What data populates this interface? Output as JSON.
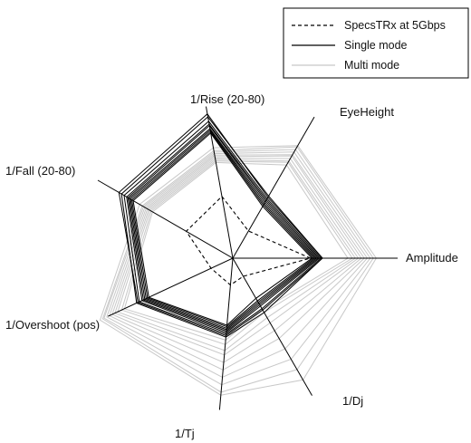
{
  "chart_data": {
    "type": "radar",
    "axes": [
      "Amplitude",
      "EyeHeight",
      "1/Rise (20-80)",
      "1/Fall (20-80)",
      "1/Overshoot (pos)",
      "1/Tj",
      "1/Dj"
    ],
    "axis_angles_deg": [
      0,
      60,
      100,
      150,
      205,
      265,
      300
    ],
    "value_range": [
      0,
      1
    ],
    "grid": false,
    "legend_position": "top-right",
    "legend": [
      {
        "label": "SpecsTRx at 5Gbps",
        "style": "dashed",
        "color": "#000000"
      },
      {
        "label": "Single mode",
        "style": "solid",
        "color": "#000000"
      },
      {
        "label": "Multi mode",
        "style": "solid",
        "color": "#c8c8c8"
      }
    ],
    "series": [
      {
        "group": "SpecsTRx at 5Gbps",
        "values": [
          0.52,
          0.21,
          0.42,
          0.36,
          0.16,
          0.18,
          0.14
        ]
      },
      {
        "group": "Single mode",
        "values": [
          0.6,
          0.48,
          0.96,
          0.86,
          0.71,
          0.53,
          0.42
        ]
      },
      {
        "group": "Single mode",
        "values": [
          0.59,
          0.46,
          0.93,
          0.84,
          0.69,
          0.51,
          0.39
        ]
      },
      {
        "group": "Single mode",
        "values": [
          0.58,
          0.45,
          0.91,
          0.82,
          0.67,
          0.5,
          0.37
        ]
      },
      {
        "group": "Single mode",
        "values": [
          0.57,
          0.44,
          0.9,
          0.81,
          0.66,
          0.49,
          0.36
        ]
      },
      {
        "group": "Single mode",
        "values": [
          0.56,
          0.43,
          0.88,
          0.8,
          0.65,
          0.48,
          0.35
        ]
      },
      {
        "group": "Single mode",
        "values": [
          0.55,
          0.42,
          0.87,
          0.79,
          0.64,
          0.47,
          0.34
        ]
      },
      {
        "group": "Single mode",
        "values": [
          0.54,
          0.41,
          0.86,
          0.78,
          0.63,
          0.46,
          0.33
        ]
      },
      {
        "group": "Single mode",
        "values": [
          0.53,
          0.4,
          0.85,
          0.77,
          0.62,
          0.45,
          0.31
        ]
      },
      {
        "group": "Single mode",
        "values": [
          0.6,
          0.47,
          0.98,
          0.88,
          0.7,
          0.52,
          0.4
        ]
      },
      {
        "group": "Multi mode",
        "values": [
          0.96,
          0.87,
          0.75,
          0.72,
          0.98,
          0.92,
          0.94
        ]
      },
      {
        "group": "Multi mode",
        "values": [
          0.94,
          0.86,
          0.73,
          0.7,
          0.96,
          0.9,
          0.86
        ]
      },
      {
        "group": "Multi mode",
        "values": [
          0.92,
          0.84,
          0.72,
          0.69,
          0.95,
          0.85,
          0.78
        ]
      },
      {
        "group": "Multi mode",
        "values": [
          0.9,
          0.82,
          0.71,
          0.68,
          0.93,
          0.8,
          0.7
        ]
      },
      {
        "group": "Multi mode",
        "values": [
          0.88,
          0.8,
          0.7,
          0.67,
          0.91,
          0.75,
          0.62
        ]
      },
      {
        "group": "Multi mode",
        "values": [
          0.86,
          0.79,
          0.69,
          0.66,
          0.89,
          0.7,
          0.56
        ]
      },
      {
        "group": "Multi mode",
        "values": [
          0.84,
          0.77,
          0.68,
          0.65,
          0.87,
          0.65,
          0.5
        ]
      },
      {
        "group": "Multi mode",
        "values": [
          0.82,
          0.75,
          0.67,
          0.64,
          0.85,
          0.62,
          0.46
        ]
      },
      {
        "group": "Multi mode",
        "values": [
          0.8,
          0.74,
          0.66,
          0.63,
          0.82,
          0.58,
          0.42
        ]
      },
      {
        "group": "Multi mode",
        "values": [
          0.77,
          0.72,
          0.65,
          0.62,
          0.8,
          0.55,
          0.4
        ]
      }
    ]
  }
}
